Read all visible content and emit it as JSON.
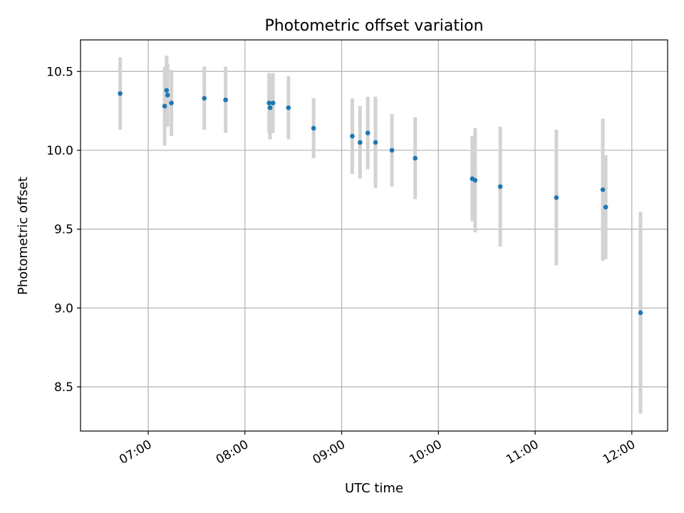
{
  "chart_data": {
    "type": "scatter",
    "title": "Photometric offset variation",
    "xlabel": "UTC time",
    "ylabel": "Photometric offset",
    "x_unit": "hours",
    "xlim": [
      6.3,
      12.37
    ],
    "ylim": [
      8.22,
      10.7
    ],
    "x_ticks": [
      {
        "value": 7,
        "label": "07:00"
      },
      {
        "value": 8,
        "label": "08:00"
      },
      {
        "value": 9,
        "label": "09:00"
      },
      {
        "value": 10,
        "label": "10:00"
      },
      {
        "value": 11,
        "label": "11:00"
      },
      {
        "value": 12,
        "label": "12:00"
      }
    ],
    "y_ticks": [
      {
        "value": 8.5,
        "label": "8.5"
      },
      {
        "value": 9.0,
        "label": "9.0"
      },
      {
        "value": 9.5,
        "label": "9.5"
      },
      {
        "value": 10.0,
        "label": "10.0"
      },
      {
        "value": 10.5,
        "label": "10.5"
      }
    ],
    "grid": true,
    "point_color": "#1f77b4",
    "errorbar_color": "#d3d3d3",
    "points": [
      {
        "x": 6.71,
        "y": 10.36,
        "yerr": 0.23
      },
      {
        "x": 7.17,
        "y": 10.28,
        "yerr": 0.25
      },
      {
        "x": 7.19,
        "y": 10.38,
        "yerr": 0.22
      },
      {
        "x": 7.2,
        "y": 10.35,
        "yerr": 0.2
      },
      {
        "x": 7.24,
        "y": 10.3,
        "yerr": 0.21
      },
      {
        "x": 7.58,
        "y": 10.33,
        "yerr": 0.2
      },
      {
        "x": 7.8,
        "y": 10.32,
        "yerr": 0.21
      },
      {
        "x": 8.25,
        "y": 10.3,
        "yerr": 0.19
      },
      {
        "x": 8.26,
        "y": 10.27,
        "yerr": 0.2
      },
      {
        "x": 8.29,
        "y": 10.3,
        "yerr": 0.19
      },
      {
        "x": 8.45,
        "y": 10.27,
        "yerr": 0.2
      },
      {
        "x": 8.71,
        "y": 10.14,
        "yerr": 0.19
      },
      {
        "x": 9.11,
        "y": 10.09,
        "yerr": 0.24
      },
      {
        "x": 9.19,
        "y": 10.05,
        "yerr": 0.23
      },
      {
        "x": 9.27,
        "y": 10.11,
        "yerr": 0.23
      },
      {
        "x": 9.35,
        "y": 10.05,
        "yerr": 0.29
      },
      {
        "x": 9.52,
        "y": 10.0,
        "yerr": 0.23
      },
      {
        "x": 9.76,
        "y": 9.95,
        "yerr": 0.26
      },
      {
        "x": 10.35,
        "y": 9.82,
        "yerr": 0.27
      },
      {
        "x": 10.38,
        "y": 9.81,
        "yerr": 0.33
      },
      {
        "x": 10.64,
        "y": 9.77,
        "yerr": 0.38
      },
      {
        "x": 11.22,
        "y": 9.7,
        "yerr": 0.43
      },
      {
        "x": 11.7,
        "y": 9.75,
        "yerr": 0.45
      },
      {
        "x": 11.73,
        "y": 9.64,
        "yerr": 0.33
      },
      {
        "x": 12.09,
        "y": 8.97,
        "yerr": 0.64
      }
    ]
  }
}
